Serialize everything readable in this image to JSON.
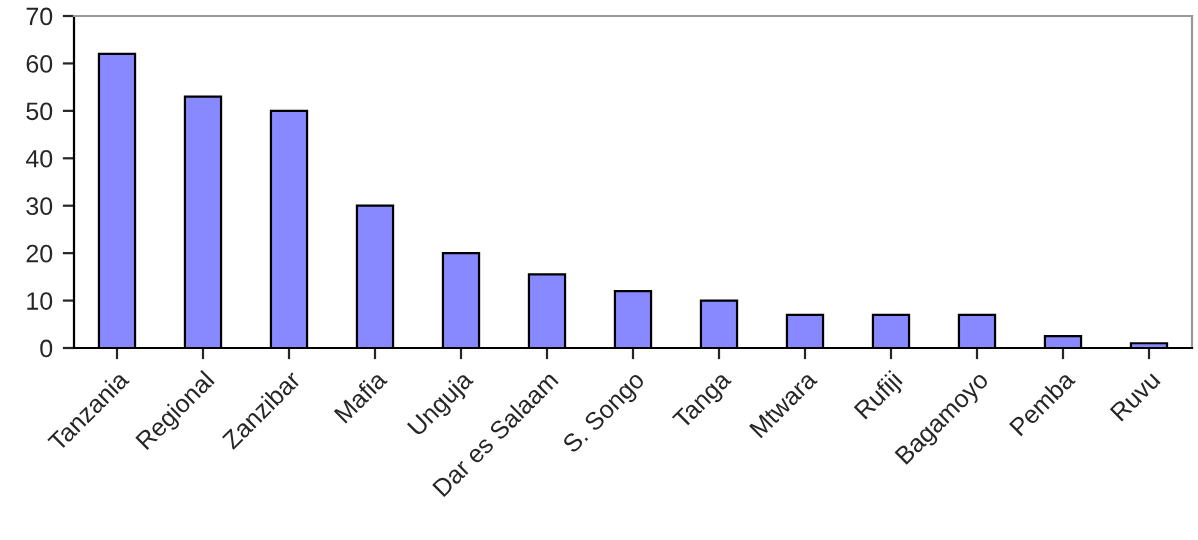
{
  "chart_data": {
    "type": "bar",
    "categories": [
      "Tanzania",
      "Regional",
      "Zanzibar",
      "Mafia",
      "Unguja",
      "Dar es Salaam",
      "S. Songo",
      "Tanga",
      "Mtwara",
      "Rufiji",
      "Bagamoyo",
      "Pemba",
      "Ruvu"
    ],
    "values": [
      62,
      53,
      50,
      30,
      20,
      15.5,
      12,
      10,
      7,
      7,
      7,
      2.5,
      1
    ],
    "color": "#8888ff",
    "ylim": [
      0,
      70
    ],
    "yticks": [
      0,
      10,
      20,
      30,
      40,
      50,
      60,
      70
    ],
    "grid": false,
    "legend": false
  }
}
